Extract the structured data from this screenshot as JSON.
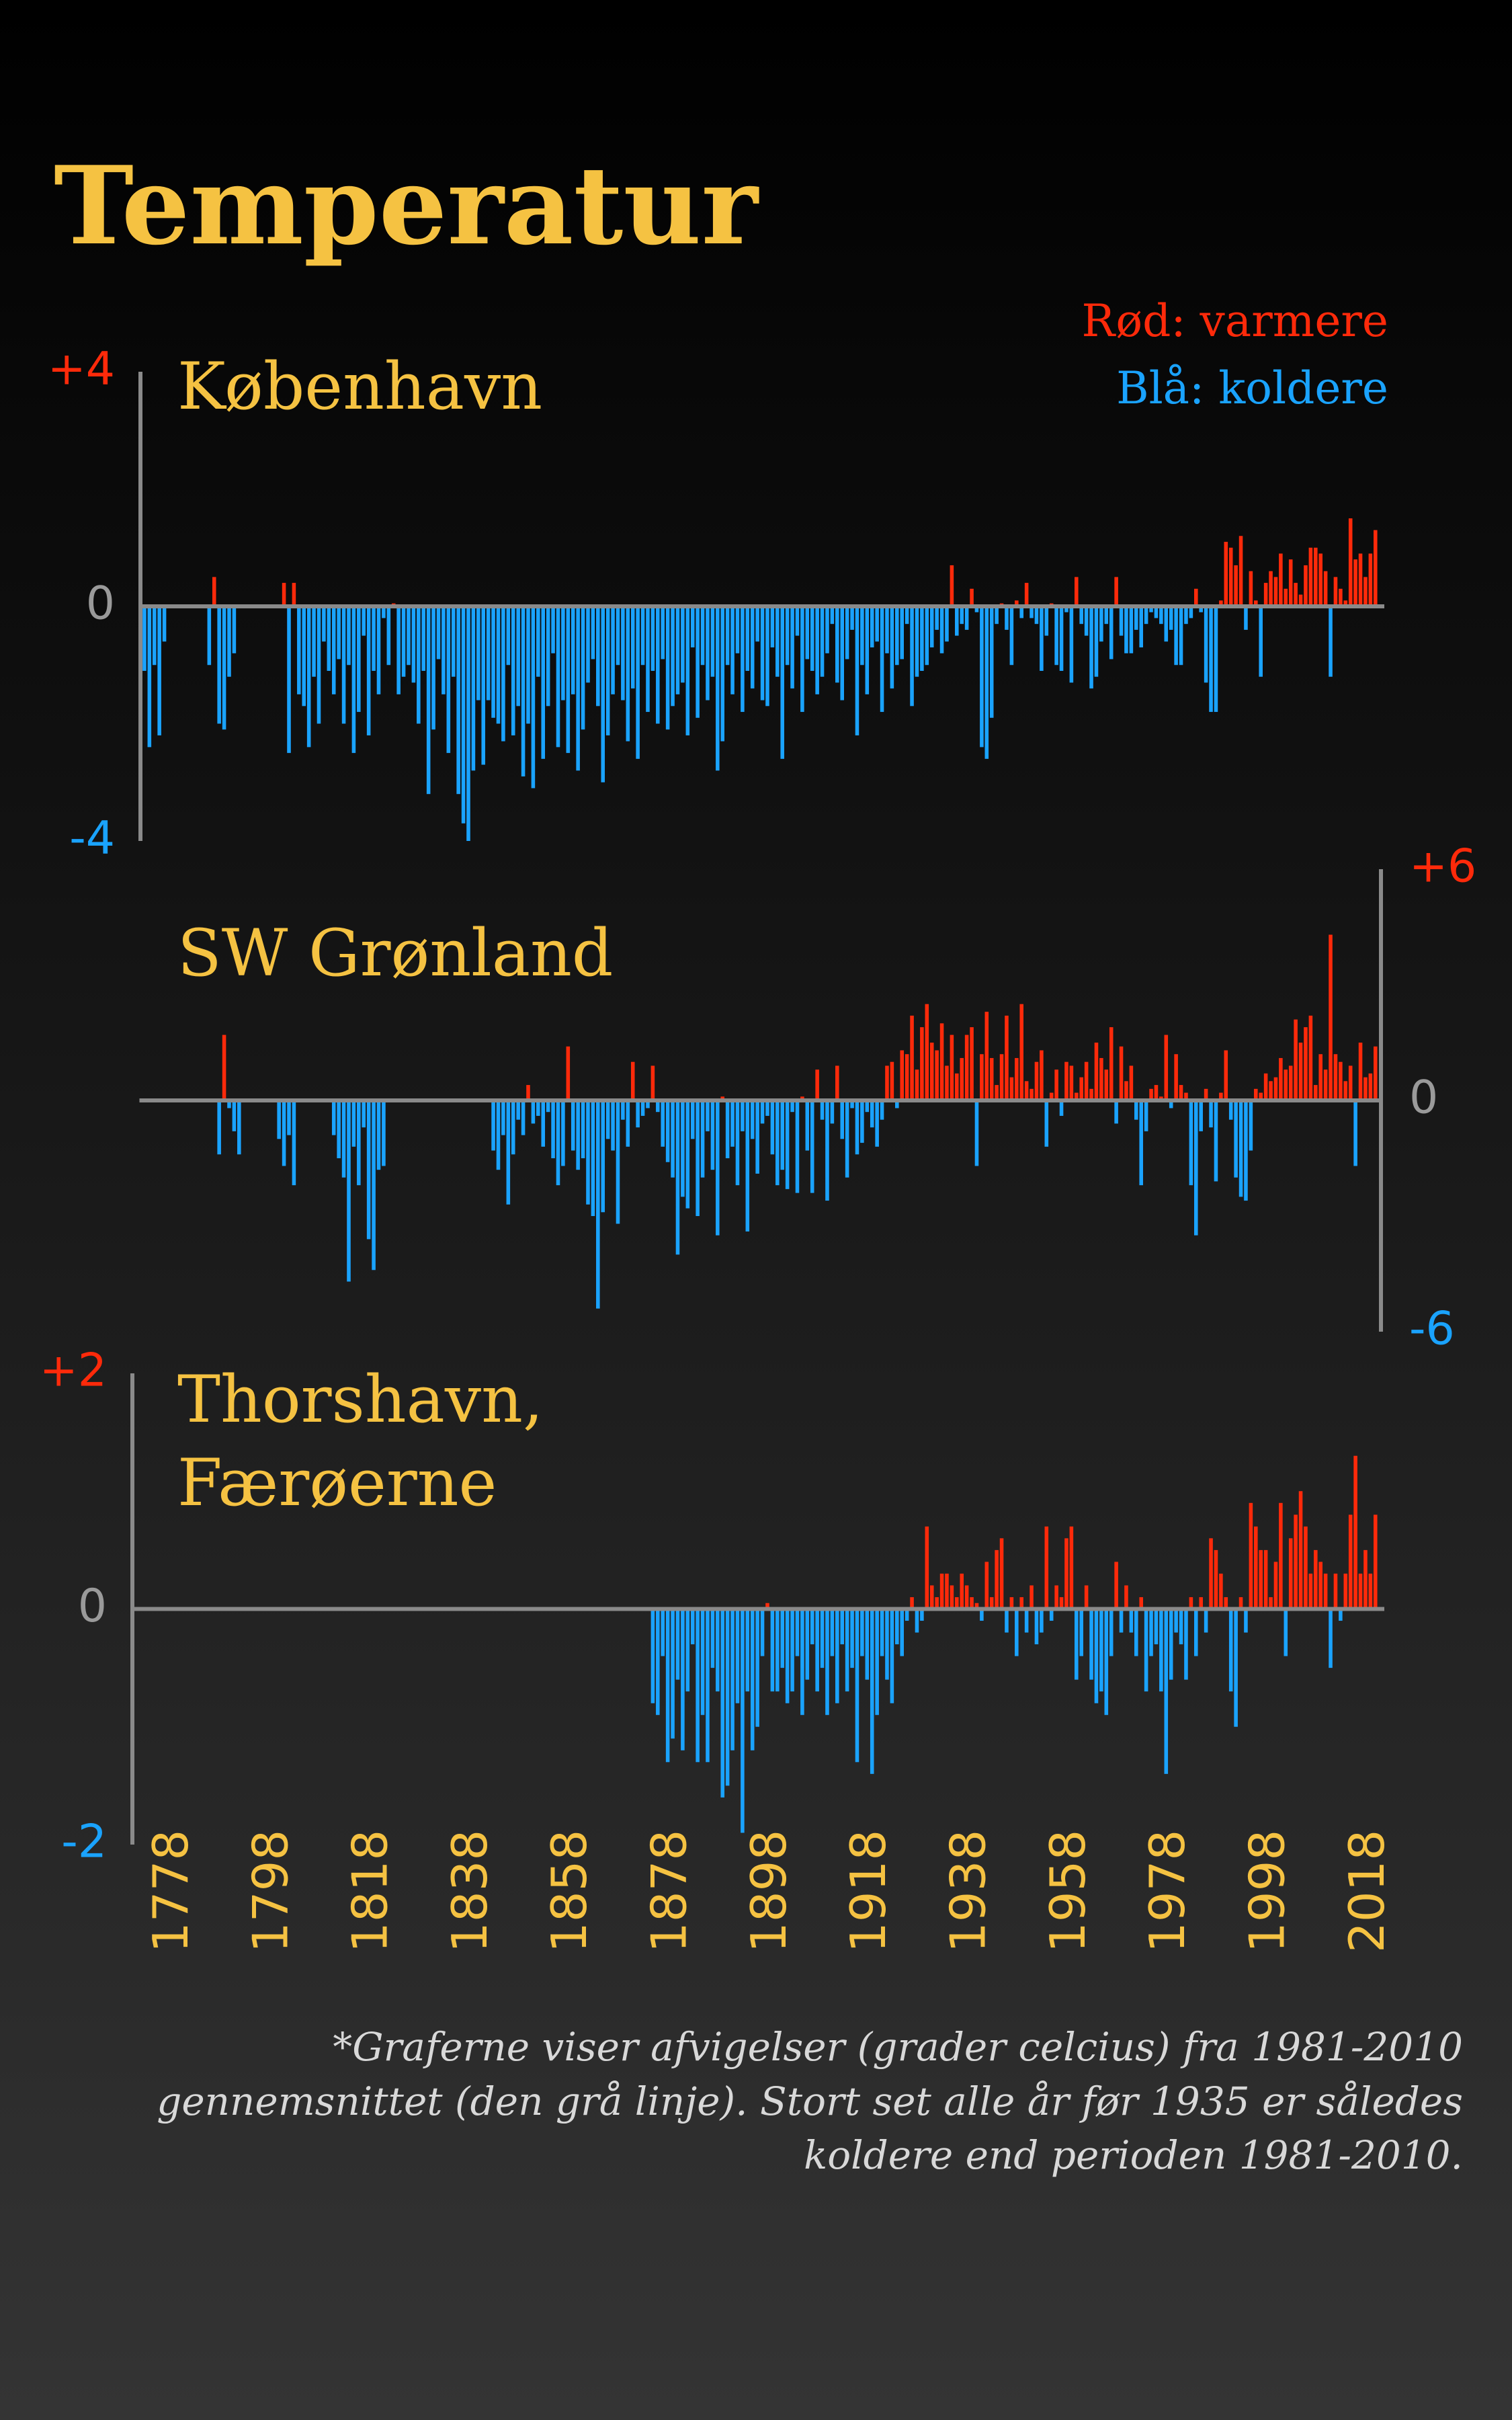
{
  "title": "Temperatur",
  "legend": [
    "Rød: varmere",
    "Blå: koldere"
  ],
  "footnote": [
    "*Graferne viser afvigelser (grader celcius) fra 1981-2010",
    "gennemsnittet (den grå linje). Stort set alle år før 1935 er således",
    "koldere end perioden 1981-2010."
  ],
  "chart_data": [
    {
      "type": "bar",
      "title": "København",
      "y_axis_side": "left",
      "positive_color": "#ff2a0a",
      "negative_color": "#1aa3ff",
      "xlim": [
        1771,
        2020
      ],
      "ylim": [
        -4,
        4
      ],
      "yticks": [
        {
          "value": 4,
          "label": "+4"
        },
        0,
        {
          "value": -4,
          "label": "-4"
        }
      ],
      "x": [
        1772,
        1773,
        1774,
        1775,
        1776,
        1777,
        1778,
        1779,
        1780,
        1781,
        1782,
        1783,
        1784,
        1785,
        1786,
        1787,
        1788,
        1789,
        1790,
        1791,
        1792,
        1793,
        1794,
        1795,
        1796,
        1797,
        1798,
        1799,
        1800,
        1801,
        1802,
        1803,
        1804,
        1805,
        1806,
        1807,
        1808,
        1809,
        1810,
        1811,
        1812,
        1813,
        1814,
        1815,
        1816,
        1817,
        1818,
        1819,
        1820,
        1821,
        1822,
        1823,
        1824,
        1825,
        1826,
        1827,
        1828,
        1829,
        1830,
        1831,
        1832,
        1833,
        1834,
        1835,
        1836,
        1837,
        1838,
        1839,
        1840,
        1841,
        1842,
        1843,
        1844,
        1845,
        1846,
        1847,
        1848,
        1849,
        1850,
        1851,
        1852,
        1853,
        1854,
        1855,
        1856,
        1857,
        1858,
        1859,
        1860,
        1861,
        1862,
        1863,
        1864,
        1865,
        1866,
        1867,
        1868,
        1869,
        1870,
        1871,
        1872,
        1873,
        1874,
        1875,
        1876,
        1877,
        1878,
        1879,
        1880,
        1881,
        1882,
        1883,
        1884,
        1885,
        1886,
        1887,
        1888,
        1889,
        1890,
        1891,
        1892,
        1893,
        1894,
        1895,
        1896,
        1897,
        1898,
        1899,
        1900,
        1901,
        1902,
        1903,
        1904,
        1905,
        1906,
        1907,
        1908,
        1909,
        1910,
        1911,
        1912,
        1913,
        1914,
        1915,
        1916,
        1917,
        1918,
        1919,
        1920,
        1921,
        1922,
        1923,
        1924,
        1925,
        1926,
        1927,
        1928,
        1929,
        1930,
        1931,
        1932,
        1933,
        1934,
        1935,
        1936,
        1937,
        1938,
        1939,
        1940,
        1941,
        1942,
        1943,
        1944,
        1945,
        1946,
        1947,
        1948,
        1949,
        1950,
        1951,
        1952,
        1953,
        1954,
        1955,
        1956,
        1957,
        1958,
        1959,
        1960,
        1961,
        1962,
        1963,
        1964,
        1965,
        1966,
        1967,
        1968,
        1969,
        1970,
        1971,
        1972,
        1973,
        1974,
        1975,
        1976,
        1977,
        1978,
        1979,
        1980,
        1981,
        1982,
        1983,
        1984,
        1985,
        1986,
        1987,
        1988,
        1989,
        1990,
        1991,
        1992,
        1993,
        1994,
        1995,
        1996,
        1997,
        1998,
        1999,
        2000,
        2001,
        2002,
        2003,
        2004,
        2005,
        2006,
        2007,
        2008,
        2009,
        2010,
        2011,
        2012,
        2013,
        2014,
        2015,
        2016,
        2017,
        2018,
        2019
      ],
      "values": [
        -1.1,
        -2.4,
        -1.0,
        -2.2,
        -0.6,
        null,
        null,
        null,
        null,
        null,
        null,
        null,
        null,
        -1.0,
        0.5,
        -2.0,
        -2.1,
        -1.2,
        -0.8,
        null,
        null,
        null,
        null,
        null,
        null,
        null,
        null,
        null,
        0.4,
        -2.5,
        0.4,
        -1.5,
        -1.7,
        -2.4,
        -1.2,
        -2.0,
        -0.6,
        -1.1,
        -1.5,
        -0.9,
        -2.0,
        -1.0,
        -2.5,
        -1.8,
        -0.5,
        -2.2,
        -1.1,
        -1.5,
        -0.2,
        -1.0,
        0.05,
        -1.5,
        -1.2,
        -1.0,
        -1.3,
        -2.0,
        -1.1,
        -3.2,
        -2.1,
        -0.9,
        -1.5,
        -2.5,
        -1.2,
        -3.2,
        -3.7,
        -4.0,
        -2.8,
        -1.6,
        -2.7,
        -1.6,
        -1.9,
        -2.0,
        -2.3,
        -1.0,
        -2.2,
        -1.7,
        -2.9,
        -2.0,
        -3.1,
        -1.2,
        -2.6,
        -1.7,
        -0.8,
        -2.4,
        -1.6,
        -2.5,
        -1.5,
        -2.8,
        -2.1,
        -1.3,
        -0.9,
        -1.7,
        -3.0,
        -2.2,
        -1.5,
        -1.0,
        -1.6,
        -2.3,
        -1.4,
        -2.6,
        -1.0,
        -1.8,
        -1.1,
        -2.0,
        -0.9,
        -2.1,
        -1.7,
        -1.5,
        -1.3,
        -2.2,
        -0.7,
        -1.9,
        -1.0,
        -1.6,
        -1.2,
        -2.8,
        -2.3,
        -1.0,
        -1.5,
        -0.8,
        -1.8,
        -1.1,
        -1.4,
        -0.6,
        -1.6,
        -1.7,
        -0.7,
        -1.2,
        -2.6,
        -1.0,
        -1.4,
        -0.5,
        -1.8,
        -0.9,
        -1.1,
        -1.5,
        -1.2,
        -0.8,
        -0.3,
        -1.3,
        -1.6,
        -0.9,
        -0.4,
        -2.2,
        -1.0,
        -1.5,
        -0.7,
        -0.6,
        -1.8,
        -0.8,
        -1.4,
        -1.0,
        -0.9,
        -0.3,
        -1.7,
        -1.2,
        -1.1,
        -1.0,
        -0.7,
        -0.4,
        -0.8,
        -0.6,
        0.7,
        -0.5,
        -0.3,
        -0.4,
        0.3,
        -0.1,
        -2.4,
        -2.6,
        -1.9,
        -0.3,
        0.05,
        -0.4,
        -1.0,
        0.1,
        -0.2,
        0.4,
        -0.2,
        -0.3,
        -1.1,
        -0.5,
        0.05,
        -1.0,
        -1.1,
        -0.1,
        -1.3,
        0.5,
        -0.3,
        -0.5,
        -1.4,
        -1.2,
        -0.6,
        -0.3,
        -0.9,
        0.5,
        -0.5,
        -0.8,
        -0.8,
        -0.4,
        -0.7,
        -0.3,
        -0.1,
        -0.2,
        -0.3,
        -0.6,
        -0.4,
        -1.0,
        -1.0,
        -0.3,
        -0.2,
        0.3,
        -0.1,
        -1.3,
        -1.8,
        -1.8,
        0.1,
        1.1,
        1.0,
        0.7,
        1.2,
        -0.4,
        0.6,
        0.1,
        -1.2,
        0.4,
        0.6,
        0.5,
        0.9,
        0.3,
        0.8,
        0.4,
        0.2,
        0.7,
        1.0,
        1.0,
        0.9,
        0.6,
        -1.2,
        0.5,
        0.3,
        0.1,
        1.5,
        0.8,
        0.9,
        0.5,
        0.9,
        1.3
      ]
    },
    {
      "type": "bar",
      "title": "SW Grønland",
      "y_axis_side": "right",
      "positive_color": "#ff2a0a",
      "negative_color": "#1aa3ff",
      "xlim": [
        1771,
        2020
      ],
      "ylim": [
        -6,
        6
      ],
      "yticks": [
        {
          "value": 6,
          "label": "+6"
        },
        0,
        {
          "value": -6,
          "label": "-6"
        }
      ],
      "x": [
        1787,
        1788,
        1789,
        1790,
        1791,
        1792,
        1793,
        1794,
        1795,
        1796,
        1797,
        1798,
        1799,
        1800,
        1801,
        1802,
        1803,
        1804,
        1805,
        1806,
        1807,
        1808,
        1809,
        1810,
        1811,
        1812,
        1813,
        1814,
        1815,
        1816,
        1817,
        1818,
        1819,
        1820,
        1821,
        1822,
        1823,
        1824,
        1825,
        1826,
        1827,
        1828,
        1829,
        1830,
        1831,
        1832,
        1833,
        1834,
        1835,
        1836,
        1837,
        1838,
        1839,
        1840,
        1841,
        1842,
        1843,
        1844,
        1845,
        1846,
        1847,
        1848,
        1849,
        1850,
        1851,
        1852,
        1853,
        1854,
        1855,
        1856,
        1857,
        1858,
        1859,
        1860,
        1861,
        1862,
        1863,
        1864,
        1865,
        1866,
        1867,
        1868,
        1869,
        1870,
        1871,
        1872,
        1873,
        1874,
        1875,
        1876,
        1877,
        1878,
        1879,
        1880,
        1881,
        1882,
        1883,
        1884,
        1885,
        1886,
        1887,
        1888,
        1889,
        1890,
        1891,
        1892,
        1893,
        1894,
        1895,
        1896,
        1897,
        1898,
        1899,
        1900,
        1901,
        1902,
        1903,
        1904,
        1905,
        1906,
        1907,
        1908,
        1909,
        1910,
        1911,
        1912,
        1913,
        1914,
        1915,
        1916,
        1917,
        1918,
        1919,
        1920,
        1921,
        1922,
        1923,
        1924,
        1925,
        1926,
        1927,
        1928,
        1929,
        1930,
        1931,
        1932,
        1933,
        1934,
        1935,
        1936,
        1937,
        1938,
        1939,
        1940,
        1941,
        1942,
        1943,
        1944,
        1945,
        1946,
        1947,
        1948,
        1949,
        1950,
        1951,
        1952,
        1953,
        1954,
        1955,
        1956,
        1957,
        1958,
        1959,
        1960,
        1961,
        1962,
        1963,
        1964,
        1965,
        1966,
        1967,
        1968,
        1969,
        1970,
        1971,
        1972,
        1973,
        1974,
        1975,
        1976,
        1977,
        1978,
        1979,
        1980,
        1981,
        1982,
        1983,
        1984,
        1985,
        1986,
        1987,
        1988,
        1989,
        1990,
        1991,
        1992,
        1993,
        1994,
        1995,
        1996,
        1997,
        1998,
        1999,
        2000,
        2001,
        2002,
        2003,
        2004,
        2005,
        2006,
        2007,
        2008,
        2009,
        2010,
        2011,
        2012,
        2013,
        2014,
        2015,
        2016,
        2017,
        2018,
        2019
      ],
      "values": [
        -1.4,
        1.7,
        -0.2,
        -0.8,
        -1.4,
        null,
        null,
        null,
        null,
        null,
        null,
        null,
        -1.0,
        -1.7,
        -0.9,
        -2.2,
        null,
        null,
        null,
        null,
        null,
        null,
        null,
        -0.9,
        -1.5,
        -2.0,
        -4.7,
        -1.2,
        -2.2,
        -0.7,
        -3.6,
        -4.4,
        -1.8,
        -1.7,
        null,
        null,
        null,
        null,
        null,
        null,
        null,
        null,
        null,
        null,
        null,
        null,
        null,
        null,
        null,
        null,
        null,
        null,
        null,
        null,
        null,
        -1.3,
        -1.8,
        -0.9,
        -2.7,
        -1.4,
        -0.5,
        -0.9,
        0.4,
        -0.6,
        -0.4,
        -1.2,
        -0.3,
        -1.5,
        -2.2,
        -1.7,
        1.4,
        -1.3,
        -1.8,
        -1.5,
        -2.7,
        -3.0,
        -5.4,
        -2.9,
        -1.0,
        -1.3,
        -3.2,
        -0.5,
        -1.2,
        1.0,
        -0.7,
        -0.4,
        -0.2,
        0.9,
        -0.3,
        -1.2,
        -1.6,
        -2.0,
        -4.0,
        -2.5,
        -2.8,
        -1.0,
        -3.0,
        -2.0,
        -0.8,
        -1.8,
        -3.5,
        0.1,
        -1.5,
        -1.2,
        -2.2,
        -0.8,
        -3.4,
        -1.0,
        -1.9,
        -0.6,
        -0.4,
        -1.4,
        -2.2,
        -1.8,
        -2.3,
        -0.3,
        -2.4,
        0.1,
        -1.3,
        -2.4,
        0.8,
        -0.5,
        -2.6,
        -0.6,
        0.9,
        -1.0,
        -2.0,
        -0.2,
        -1.4,
        -1.1,
        -0.3,
        -0.7,
        -1.2,
        -0.5,
        0.9,
        1.0,
        -0.2,
        1.3,
        1.2,
        2.2,
        0.8,
        1.9,
        2.5,
        1.5,
        1.3,
        2.0,
        0.9,
        1.7,
        0.7,
        1.1,
        1.7,
        1.9,
        -1.7,
        1.2,
        2.3,
        1.1,
        0.4,
        1.2,
        2.2,
        0.6,
        1.1,
        2.5,
        0.5,
        0.3,
        1.0,
        1.3,
        -1.2,
        0.2,
        0.8,
        -0.4,
        1.0,
        0.9,
        0.2,
        0.6,
        1.0,
        0.3,
        1.5,
        1.1,
        0.8,
        1.9,
        -0.6,
        1.4,
        0.5,
        0.9,
        -0.5,
        -2.2,
        -0.8,
        0.3,
        0.4,
        0.1,
        1.7,
        -0.2,
        1.2,
        0.4,
        0.2,
        -2.2,
        -3.5,
        -0.8,
        0.3,
        -0.7,
        -2.1,
        0.2,
        1.3,
        -0.5,
        -2.0,
        -2.5,
        -2.6,
        -1.3,
        0.3,
        0.2,
        0.7,
        0.5,
        0.6,
        1.1,
        0.8,
        0.9,
        2.1,
        1.5,
        1.9,
        2.2,
        0.4,
        1.2,
        0.8,
        4.3,
        1.2,
        1.0,
        0.5,
        0.9,
        -1.7,
        1.5,
        0.6,
        0.7,
        1.4
      ]
    },
    {
      "type": "bar",
      "title": [
        "Thorshavn,",
        "Færøerne"
      ],
      "y_axis_side": "left",
      "positive_color": "#ff2a0a",
      "negative_color": "#1aa3ff",
      "xlim": [
        1771,
        2020
      ],
      "ylim": [
        -2,
        2
      ],
      "yticks": [
        {
          "value": 2,
          "label": "+2"
        },
        0,
        {
          "value": -2,
          "label": "-2"
        }
      ],
      "xticks": [
        1778,
        1798,
        1818,
        1838,
        1858,
        1878,
        1898,
        1918,
        1938,
        1958,
        1978,
        1998,
        2018
      ],
      "x": [
        1874,
        1875,
        1876,
        1877,
        1878,
        1879,
        1880,
        1881,
        1882,
        1883,
        1884,
        1885,
        1886,
        1887,
        1888,
        1889,
        1890,
        1891,
        1892,
        1893,
        1894,
        1895,
        1896,
        1897,
        1898,
        1899,
        1900,
        1901,
        1902,
        1903,
        1904,
        1905,
        1906,
        1907,
        1908,
        1909,
        1910,
        1911,
        1912,
        1913,
        1914,
        1915,
        1916,
        1917,
        1918,
        1919,
        1920,
        1921,
        1922,
        1923,
        1924,
        1925,
        1926,
        1927,
        1928,
        1929,
        1930,
        1931,
        1932,
        1933,
        1934,
        1935,
        1936,
        1937,
        1938,
        1939,
        1940,
        1941,
        1942,
        1943,
        1944,
        1945,
        1946,
        1947,
        1948,
        1949,
        1950,
        1951,
        1952,
        1953,
        1954,
        1955,
        1956,
        1957,
        1958,
        1959,
        1960,
        1961,
        1962,
        1963,
        1964,
        1965,
        1966,
        1967,
        1968,
        1969,
        1970,
        1971,
        1972,
        1973,
        1974,
        1975,
        1976,
        1977,
        1978,
        1979,
        1980,
        1981,
        1982,
        1983,
        1984,
        1985,
        1986,
        1987,
        1988,
        1989,
        1990,
        1991,
        1992,
        1993,
        1994,
        1995,
        1996,
        1997,
        1998,
        1999,
        2000,
        2001,
        2002,
        2003,
        2004,
        2005,
        2006,
        2007,
        2008,
        2009,
        2010,
        2011,
        2012,
        2013,
        2014,
        2015,
        2016,
        2017,
        2018,
        2019
      ],
      "values": [
        -0.8,
        -0.9,
        -0.4,
        -1.3,
        -1.1,
        -0.6,
        -1.2,
        -0.7,
        -0.3,
        -1.3,
        -0.9,
        -1.3,
        -0.5,
        -0.7,
        -1.6,
        -1.5,
        -1.2,
        -0.8,
        -1.9,
        -0.7,
        -1.2,
        -1.0,
        -0.4,
        0.05,
        -0.7,
        -0.7,
        -0.5,
        -0.8,
        -0.7,
        -0.4,
        -0.9,
        -0.6,
        -0.3,
        -0.7,
        -0.5,
        -0.9,
        -0.4,
        -0.8,
        -0.3,
        -0.7,
        -0.5,
        -1.3,
        -0.4,
        -0.6,
        -1.4,
        -0.9,
        -0.4,
        -0.6,
        -0.8,
        -0.3,
        -0.4,
        -0.1,
        0.1,
        -0.2,
        -0.1,
        0.7,
        0.2,
        0.1,
        0.3,
        0.3,
        0.2,
        0.1,
        0.3,
        0.2,
        0.1,
        0.05,
        -0.1,
        0.4,
        0.1,
        0.5,
        0.6,
        -0.2,
        0.1,
        -0.4,
        0.1,
        -0.2,
        0.2,
        -0.3,
        -0.2,
        0.7,
        -0.1,
        0.2,
        0.1,
        0.6,
        0.7,
        -0.6,
        -0.4,
        0.2,
        -0.6,
        -0.8,
        -0.7,
        -0.9,
        -0.4,
        0.4,
        -0.2,
        0.2,
        -0.2,
        -0.4,
        0.1,
        -0.7,
        -0.4,
        -0.3,
        -0.7,
        -1.4,
        -0.6,
        -0.2,
        -0.3,
        -0.6,
        0.1,
        -0.4,
        0.1,
        -0.2,
        0.6,
        0.5,
        0.3,
        0.1,
        -0.7,
        -1.0,
        0.1,
        -0.2,
        0.9,
        0.7,
        0.5,
        0.5,
        0.1,
        0.4,
        0.9,
        -0.4,
        0.6,
        0.8,
        1.0,
        0.7,
        0.3,
        0.5,
        0.4,
        0.3,
        -0.5,
        0.3,
        -0.1,
        0.3,
        0.8,
        1.3,
        0.3,
        0.5,
        0.3,
        0.8
      ]
    }
  ]
}
